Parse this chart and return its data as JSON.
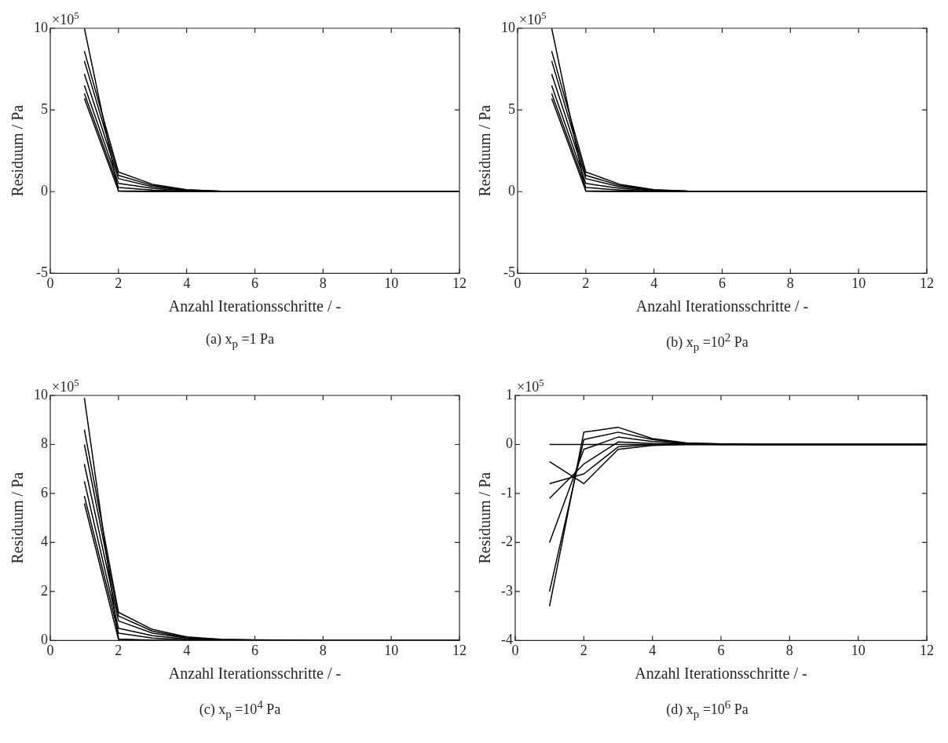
{
  "chart_data": [
    {
      "type": "line",
      "title": "(a) x$_{p}$ =1 Pa",
      "xlabel": "Anzahl Iterationsschritte / -",
      "ylabel": "Residuum / Pa",
      "annotations": [
        "×10$^{5}$"
      ],
      "x": [
        1,
        2,
        3,
        4,
        5,
        6,
        7,
        8,
        9,
        10,
        11,
        12
      ],
      "xlim": [
        0,
        12
      ],
      "xticks": [
        0,
        2,
        4,
        6,
        8,
        10,
        12
      ],
      "ylim": [
        -5,
        10
      ],
      "yticks": [
        -5,
        0,
        5,
        10
      ],
      "grid": false,
      "legend": false,
      "marker": "none",
      "line_style": "solid",
      "series": [
        {
          "color": "#000000",
          "values": [
            10,
            0.02,
            0,
            0,
            0,
            0,
            0,
            0,
            0,
            0,
            0,
            0
          ]
        },
        {
          "color": "#000000",
          "values": [
            8.6,
            1.2,
            0.45,
            0.12,
            0.03,
            0,
            0,
            0,
            0,
            0,
            0,
            0
          ]
        },
        {
          "color": "#000000",
          "values": [
            8,
            1,
            0.38,
            0.1,
            0.02,
            0,
            0,
            0,
            0,
            0,
            0,
            0
          ]
        },
        {
          "color": "#000000",
          "values": [
            7.2,
            0.8,
            0.3,
            0.08,
            0.02,
            0,
            0,
            0,
            0,
            0,
            0,
            0
          ]
        },
        {
          "color": "#000000",
          "values": [
            6.5,
            0.5,
            0.2,
            0.05,
            0.01,
            0,
            0,
            0,
            0,
            0,
            0,
            0
          ]
        },
        {
          "color": "#000000",
          "values": [
            6,
            0.25,
            0.1,
            0.03,
            0,
            0,
            0,
            0,
            0,
            0,
            0,
            0
          ]
        },
        {
          "color": "#000000",
          "values": [
            5.7,
            0.05,
            0.02,
            0,
            0,
            0,
            0,
            0,
            0,
            0,
            0,
            0
          ]
        }
      ]
    },
    {
      "type": "line",
      "title": "(b) x$_{p}$ =10$^{2}$ Pa",
      "xlabel": "Anzahl Iterationsschritte / -",
      "ylabel": "Residuum / Pa",
      "annotations": [
        "×10$^{5}$"
      ],
      "x": [
        1,
        2,
        3,
        4,
        5,
        6,
        7,
        8,
        9,
        10,
        11,
        12
      ],
      "xlim": [
        0,
        12
      ],
      "xticks": [
        0,
        2,
        4,
        6,
        8,
        10,
        12
      ],
      "ylim": [
        -5,
        10
      ],
      "yticks": [
        -5,
        0,
        5,
        10
      ],
      "grid": false,
      "legend": false,
      "marker": "none",
      "line_style": "solid",
      "series": [
        {
          "color": "#000000",
          "values": [
            10,
            0.02,
            0,
            0,
            0,
            0,
            0,
            0,
            0,
            0,
            0,
            0
          ]
        },
        {
          "color": "#000000",
          "values": [
            8.6,
            1.2,
            0.45,
            0.12,
            0.04,
            0.01,
            0,
            0,
            0,
            0,
            0,
            0
          ]
        },
        {
          "color": "#000000",
          "values": [
            8,
            1,
            0.38,
            0.1,
            0.03,
            0,
            0,
            0,
            0,
            0,
            0,
            0
          ]
        },
        {
          "color": "#000000",
          "values": [
            7.2,
            0.8,
            0.3,
            0.08,
            0.02,
            0,
            0,
            0,
            0,
            0,
            0,
            0
          ]
        },
        {
          "color": "#000000",
          "values": [
            6.5,
            0.5,
            0.2,
            0.05,
            0.01,
            0,
            0,
            0,
            0,
            0,
            0,
            0
          ]
        },
        {
          "color": "#000000",
          "values": [
            6,
            0.25,
            0.1,
            0.03,
            0,
            0,
            0,
            0,
            0,
            0,
            0,
            0
          ]
        },
        {
          "color": "#000000",
          "values": [
            5.7,
            0.05,
            0.02,
            0,
            0,
            0,
            0,
            0,
            0,
            0,
            0,
            0
          ]
        }
      ]
    },
    {
      "type": "line",
      "title": "(c) x$_{p}$ =10$^{4}$ Pa",
      "xlabel": "Anzahl Iterationsschritte / -",
      "ylabel": "Residuum / Pa",
      "annotations": [
        "×10$^{5}$"
      ],
      "x": [
        1,
        2,
        3,
        4,
        5,
        6,
        7,
        8,
        9,
        10,
        11,
        12
      ],
      "xlim": [
        0,
        12
      ],
      "xticks": [
        0,
        2,
        4,
        6,
        8,
        10,
        12
      ],
      "ylim": [
        0,
        10
      ],
      "yticks": [
        0,
        2,
        4,
        6,
        8,
        10
      ],
      "grid": false,
      "legend": false,
      "marker": "none",
      "line_style": "solid",
      "series": [
        {
          "color": "#000000",
          "values": [
            9.9,
            0.05,
            0,
            0,
            0,
            0,
            0,
            0,
            0,
            0,
            0,
            0
          ]
        },
        {
          "color": "#000000",
          "values": [
            8.6,
            1.15,
            0.45,
            0.15,
            0.05,
            0.03,
            0.02,
            0,
            0,
            0,
            0,
            0
          ]
        },
        {
          "color": "#000000",
          "values": [
            8,
            1,
            0.38,
            0.12,
            0.04,
            0.02,
            0.01,
            0,
            0,
            0,
            0,
            0
          ]
        },
        {
          "color": "#000000",
          "values": [
            7.2,
            0.8,
            0.3,
            0.1,
            0.03,
            0.01,
            0,
            0,
            0,
            0,
            0,
            0
          ]
        },
        {
          "color": "#000000",
          "values": [
            6.5,
            0.5,
            0.2,
            0.06,
            0.02,
            0,
            0,
            0,
            0,
            0,
            0,
            0
          ]
        },
        {
          "color": "#000000",
          "values": [
            5.9,
            0.3,
            0.1,
            0.03,
            0,
            0,
            0,
            0,
            0,
            0,
            0,
            0
          ]
        },
        {
          "color": "#000000",
          "values": [
            5.6,
            0.05,
            0.02,
            0,
            0,
            0,
            0,
            0,
            0,
            0,
            0,
            0
          ]
        }
      ]
    },
    {
      "type": "line",
      "title": "(d) x$_{p}$ =10$^{6}$ Pa",
      "xlabel": "Anzahl Iterationsschritte / -",
      "ylabel": "Residuum / Pa",
      "annotations": [
        "×10$^{5}$"
      ],
      "x": [
        1,
        2,
        3,
        4,
        5,
        6,
        7,
        8,
        9,
        10,
        11,
        12
      ],
      "xlim": [
        0,
        12
      ],
      "xticks": [
        0,
        2,
        4,
        6,
        8,
        10,
        12
      ],
      "ylim": [
        -4,
        1
      ],
      "yticks": [
        -4,
        -3,
        -2,
        -1,
        0,
        1
      ],
      "grid": false,
      "legend": false,
      "marker": "none",
      "line_style": "solid",
      "series": [
        {
          "color": "#000000",
          "values": [
            0,
            0,
            0,
            0,
            0,
            0,
            0,
            0,
            0,
            0,
            0,
            0
          ]
        },
        {
          "color": "#000000",
          "values": [
            -0.35,
            -0.8,
            -0.1,
            -0.02,
            0,
            0,
            0,
            0,
            0,
            0,
            0,
            0
          ]
        },
        {
          "color": "#000000",
          "values": [
            -0.8,
            -0.6,
            -0.05,
            0,
            0,
            0,
            0,
            0,
            0,
            0,
            0,
            0
          ]
        },
        {
          "color": "#000000",
          "values": [
            -1.1,
            -0.4,
            0.05,
            0.02,
            0.01,
            0,
            0,
            0,
            0,
            0,
            0,
            0
          ]
        },
        {
          "color": "#000000",
          "values": [
            -2,
            -0.1,
            0.15,
            0.06,
            0.02,
            0,
            0,
            0,
            0,
            0,
            0,
            0
          ]
        },
        {
          "color": "#000000",
          "values": [
            -3,
            0.1,
            0.25,
            0.1,
            0.02,
            0.01,
            0,
            0,
            0,
            0,
            0,
            0
          ]
        },
        {
          "color": "#000000",
          "values": [
            -3.3,
            0.25,
            0.35,
            0.12,
            0.03,
            0.01,
            0,
            0,
            0,
            0,
            0,
            0
          ]
        }
      ]
    }
  ]
}
